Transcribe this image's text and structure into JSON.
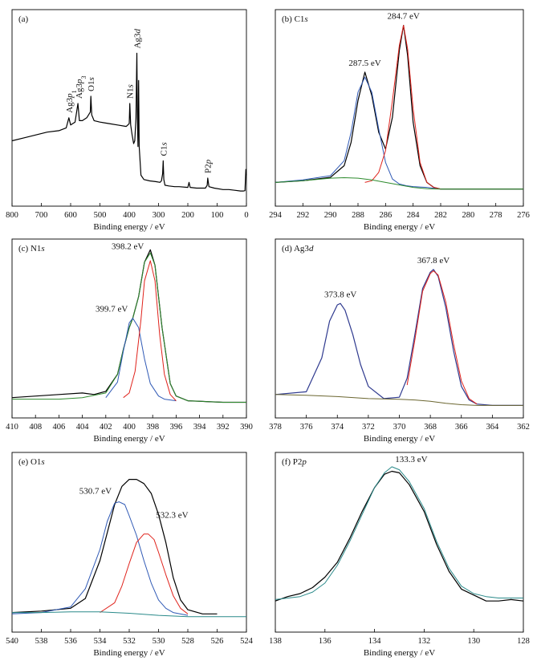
{
  "figure": {
    "xlabel": "Binding energy / eV"
  },
  "chart_data": [
    {
      "type": "line",
      "panel": "(a)",
      "xlabel": "Binding energy / eV",
      "xlim": [
        800,
        0
      ],
      "x_ticks": [
        800,
        700,
        600,
        500,
        400,
        300,
        200,
        100,
        0
      ],
      "y_ticks_shown": false,
      "series": [
        {
          "color": "#000000",
          "x": [
            800,
            760,
            720,
            680,
            640,
            615,
            606,
            600,
            585,
            575,
            570,
            560,
            545,
            533,
            531,
            528,
            520,
            500,
            470,
            440,
            410,
            405,
            400,
            398,
            395,
            390,
            385,
            381,
            377,
            374,
            372,
            370,
            368,
            366,
            360,
            350,
            330,
            310,
            295,
            290,
            286,
            284,
            282,
            278,
            265,
            245,
            230,
            200,
            196,
            192,
            170,
            150,
            140,
            134,
            132,
            128,
            110,
            80,
            60,
            40,
            20,
            10,
            5,
            2,
            0
          ],
          "y": [
            0.36,
            0.38,
            0.4,
            0.42,
            0.43,
            0.45,
            0.52,
            0.47,
            0.49,
            0.62,
            0.5,
            0.5,
            0.52,
            0.56,
            0.67,
            0.54,
            0.5,
            0.49,
            0.48,
            0.47,
            0.46,
            0.47,
            0.48,
            0.62,
            0.47,
            0.4,
            0.34,
            0.36,
            0.52,
            0.97,
            0.52,
            0.32,
            0.78,
            0.32,
            0.12,
            0.09,
            0.08,
            0.075,
            0.07,
            0.08,
            0.13,
            0.22,
            0.09,
            0.05,
            0.045,
            0.04,
            0.04,
            0.035,
            0.07,
            0.035,
            0.03,
            0.03,
            0.03,
            0.05,
            0.1,
            0.04,
            0.03,
            0.02,
            0.02,
            0.015,
            0.01,
            0.01,
            0.012,
            0.16,
            0.12
          ]
        }
      ],
      "peak_labels": [
        "Ag3p1",
        "Ag3p3",
        "O1s",
        "N1s",
        "Ag3d",
        "C1s",
        "P2p"
      ]
    },
    {
      "type": "line",
      "panel": "(b) C1s",
      "xlabel": "Binding energy / eV",
      "xlim": [
        294,
        276
      ],
      "x_ticks": [
        294,
        292,
        290,
        288,
        286,
        284,
        282,
        280,
        278,
        276
      ],
      "y_ticks_shown": false,
      "annotations": [
        "287.5 eV",
        "284.7 eV"
      ],
      "series": [
        {
          "color": "#000000",
          "x": [
            294,
            292,
            290,
            289,
            288.5,
            288,
            287.5,
            287,
            286.5,
            286,
            285.5,
            285,
            284.7,
            284.4,
            284,
            283.5,
            283,
            282.5,
            282,
            280,
            278,
            276
          ],
          "y": [
            0.06,
            0.07,
            0.09,
            0.16,
            0.3,
            0.55,
            0.72,
            0.58,
            0.36,
            0.26,
            0.45,
            0.85,
            1.0,
            0.82,
            0.42,
            0.16,
            0.06,
            0.03,
            0.02,
            0.02,
            0.02,
            0.02
          ]
        },
        {
          "color": "#2f59b5",
          "x": [
            294,
            292,
            290,
            289,
            288.5,
            288,
            287.5,
            287,
            286.5,
            286,
            285.5,
            285,
            284.5,
            284,
            283,
            282
          ],
          "y": [
            0.06,
            0.075,
            0.1,
            0.19,
            0.36,
            0.6,
            0.69,
            0.6,
            0.38,
            0.18,
            0.08,
            0.05,
            0.04,
            0.035,
            0.03,
            0.02
          ]
        },
        {
          "color": "#e0221b",
          "x": [
            287.5,
            287,
            286.5,
            286,
            285.5,
            285,
            284.7,
            284.4,
            284,
            283.5,
            283,
            282.5,
            282
          ],
          "y": [
            0.06,
            0.07,
            0.12,
            0.25,
            0.55,
            0.88,
            1.0,
            0.86,
            0.5,
            0.18,
            0.06,
            0.03,
            0.02
          ]
        },
        {
          "color": "#2e8b2e",
          "x": [
            294,
            292,
            290,
            289,
            288,
            287,
            286,
            285,
            284,
            283,
            282,
            280,
            278,
            276
          ],
          "y": [
            0.06,
            0.07,
            0.085,
            0.088,
            0.085,
            0.075,
            0.06,
            0.045,
            0.03,
            0.022,
            0.02,
            0.02,
            0.02,
            0.02
          ]
        }
      ]
    },
    {
      "type": "line",
      "panel": "(c) N1s",
      "xlabel": "Binding energy / eV",
      "xlim": [
        410,
        390
      ],
      "x_ticks": [
        410,
        408,
        406,
        404,
        402,
        400,
        398,
        396,
        394,
        392,
        390
      ],
      "y_ticks_shown": false,
      "annotations": [
        "398.2 eV",
        "399.7 eV"
      ],
      "series": [
        {
          "color": "#000000",
          "x": [
            410,
            406,
            404,
            403,
            402,
            401,
            400.5,
            400,
            399.7,
            399.2,
            398.7,
            398.2,
            397.8,
            397.2,
            396.5,
            396,
            395,
            392,
            390
          ],
          "y": [
            0.05,
            0.07,
            0.08,
            0.07,
            0.09,
            0.2,
            0.36,
            0.5,
            0.56,
            0.7,
            0.92,
            1.0,
            0.9,
            0.5,
            0.14,
            0.06,
            0.03,
            0.02,
            0.02
          ]
        },
        {
          "color": "#2e8b2e",
          "x": [
            410,
            406,
            404,
            402,
            401,
            400.5,
            400,
            399.7,
            399.2,
            398.7,
            398.2,
            397.8,
            397.2,
            396.5,
            396,
            395,
            392,
            390
          ],
          "y": [
            0.04,
            0.04,
            0.05,
            0.08,
            0.2,
            0.36,
            0.5,
            0.56,
            0.7,
            0.92,
            0.98,
            0.9,
            0.5,
            0.14,
            0.06,
            0.03,
            0.02,
            0.02
          ]
        },
        {
          "color": "#2f59b5",
          "x": [
            402,
            401,
            400.5,
            400,
            399.7,
            399.2,
            398.7,
            398.2,
            397.5,
            397,
            396
          ],
          "y": [
            0.05,
            0.15,
            0.35,
            0.53,
            0.56,
            0.5,
            0.3,
            0.14,
            0.06,
            0.04,
            0.03
          ]
        },
        {
          "color": "#e0221b",
          "x": [
            400.5,
            400,
            399.5,
            399,
            398.7,
            398.2,
            397.8,
            397.4,
            397,
            396.5,
            396
          ],
          "y": [
            0.05,
            0.08,
            0.22,
            0.55,
            0.8,
            0.93,
            0.8,
            0.45,
            0.2,
            0.07,
            0.03
          ]
        }
      ]
    },
    {
      "type": "line",
      "panel": "(d) Ag3d",
      "xlabel": "Binding energy / eV",
      "xlim": [
        378,
        362
      ],
      "x_ticks": [
        378,
        376,
        374,
        372,
        370,
        368,
        366,
        364,
        362
      ],
      "y_ticks_shown": false,
      "annotations": [
        "373.8 eV",
        "367.8 eV"
      ],
      "series": [
        {
          "color": "#2f3a8f",
          "x": [
            378,
            376,
            375,
            374.5,
            374,
            373.8,
            373.5,
            373,
            372.5,
            372,
            371,
            370,
            369.5,
            369,
            368.5,
            368,
            367.8,
            367.5,
            367,
            366.5,
            366,
            365.5,
            365,
            364,
            362
          ],
          "y": [
            0.08,
            0.1,
            0.35,
            0.62,
            0.74,
            0.75,
            0.7,
            0.52,
            0.3,
            0.14,
            0.05,
            0.06,
            0.2,
            0.52,
            0.86,
            0.98,
            1.0,
            0.95,
            0.72,
            0.4,
            0.14,
            0.04,
            0.01,
            0.0,
            0.0
          ]
        },
        {
          "color": "#e0221b",
          "x": [
            369.5,
            369,
            368.5,
            368,
            367.8,
            367.5,
            367,
            366.5,
            366,
            365.5,
            365
          ],
          "y": [
            0.15,
            0.48,
            0.84,
            0.97,
            0.99,
            0.96,
            0.76,
            0.45,
            0.18,
            0.05,
            0.01
          ]
        },
        {
          "color": "#6b6630",
          "x": [
            378,
            376,
            374,
            372,
            370,
            369,
            368,
            367,
            366,
            365,
            364,
            362
          ],
          "y": [
            0.08,
            0.075,
            0.065,
            0.05,
            0.045,
            0.04,
            0.03,
            0.015,
            0.005,
            0.0,
            0.0,
            0.0
          ]
        }
      ]
    },
    {
      "type": "line",
      "panel": "(e) O1s",
      "xlabel": "Binding energy / eV",
      "xlim": [
        540,
        524
      ],
      "x_ticks": [
        540,
        538,
        536,
        534,
        532,
        530,
        528,
        526,
        524
      ],
      "y_ticks_shown": false,
      "annotations": [
        "530.7 eV",
        "532.3 eV"
      ],
      "series": [
        {
          "color": "#000000",
          "x": [
            540,
            538,
            536,
            535,
            534,
            533,
            532.5,
            532,
            531.5,
            531,
            530.5,
            530,
            529.5,
            529,
            528.5,
            528,
            527,
            526
          ],
          "y": [
            0.05,
            0.06,
            0.08,
            0.15,
            0.42,
            0.82,
            0.95,
            1.0,
            1.0,
            0.97,
            0.9,
            0.75,
            0.55,
            0.3,
            0.14,
            0.07,
            0.04,
            0.04
          ]
        },
        {
          "color": "#2f59b5",
          "x": [
            540,
            538,
            536,
            535,
            534,
            533.5,
            533,
            532.7,
            532.3,
            532,
            531.5,
            531,
            530.5,
            530,
            529.5,
            529,
            528
          ],
          "y": [
            0.04,
            0.05,
            0.09,
            0.22,
            0.5,
            0.7,
            0.83,
            0.84,
            0.82,
            0.74,
            0.6,
            0.42,
            0.26,
            0.14,
            0.08,
            0.05,
            0.03
          ]
        },
        {
          "color": "#e0221b",
          "x": [
            534,
            533,
            532.5,
            532,
            531.5,
            531,
            530.7,
            530.3,
            530,
            529.5,
            529,
            528.5,
            528
          ],
          "y": [
            0.05,
            0.12,
            0.24,
            0.4,
            0.55,
            0.61,
            0.61,
            0.57,
            0.48,
            0.32,
            0.17,
            0.08,
            0.04
          ]
        },
        {
          "color": "#2a8a8a",
          "x": [
            540,
            538,
            536,
            534,
            532,
            530,
            528,
            526,
            524
          ],
          "y": [
            0.05,
            0.05,
            0.055,
            0.055,
            0.045,
            0.03,
            0.02,
            0.02,
            0.02
          ]
        }
      ]
    },
    {
      "type": "line",
      "panel": "(f) P2p",
      "xlabel": "Binding energy / eV",
      "xlim": [
        138,
        128
      ],
      "x_ticks": [
        138,
        136,
        134,
        132,
        130,
        128
      ],
      "y_ticks_shown": false,
      "annotations": [
        "133.3 eV"
      ],
      "series": [
        {
          "color": "#000000",
          "x": [
            138,
            137.5,
            137,
            136.5,
            136,
            135.5,
            135,
            134.5,
            134,
            133.6,
            133.3,
            133,
            132.6,
            132,
            131.5,
            131,
            130.5,
            130,
            129.5,
            129,
            128.5,
            128
          ],
          "y": [
            0.1,
            0.13,
            0.15,
            0.19,
            0.26,
            0.36,
            0.52,
            0.7,
            0.86,
            0.95,
            0.97,
            0.96,
            0.88,
            0.7,
            0.48,
            0.3,
            0.18,
            0.14,
            0.1,
            0.1,
            0.11,
            0.1
          ]
        },
        {
          "color": "#2a8a8a",
          "x": [
            138,
            137,
            136.5,
            136,
            135.5,
            135,
            134.5,
            134,
            133.6,
            133.3,
            133,
            132.6,
            132,
            131.5,
            131,
            130.5,
            130,
            129.5,
            129,
            128
          ],
          "y": [
            0.11,
            0.13,
            0.16,
            0.22,
            0.34,
            0.5,
            0.68,
            0.86,
            0.96,
            1.0,
            0.98,
            0.9,
            0.72,
            0.5,
            0.32,
            0.2,
            0.15,
            0.13,
            0.12,
            0.12
          ]
        }
      ]
    }
  ]
}
